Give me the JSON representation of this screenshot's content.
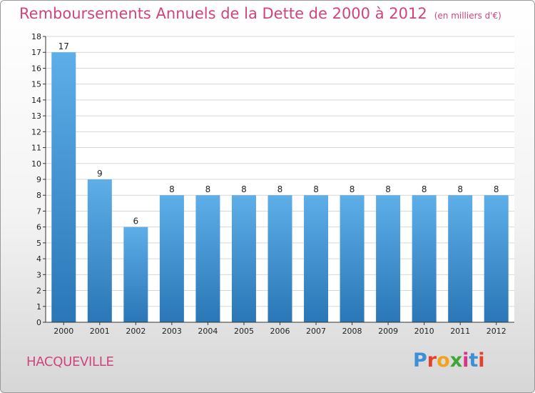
{
  "header": {
    "title": "Remboursements Annuels de la Dette de 2000 à 2012",
    "unit_note": "(en milliers d'€)"
  },
  "footer": {
    "town": "HACQUEVILLE",
    "brand_letters": [
      "P",
      "r",
      "o",
      "x",
      "i",
      "t",
      "i"
    ],
    "brand_colors": [
      "#3d8fd6",
      "#e4402b",
      "#f3a21b",
      "#3fa535",
      "#d6338a",
      "#3d8fd6",
      "#e4402b"
    ]
  },
  "chart_data": {
    "type": "bar",
    "title": "Remboursements Annuels de la Dette de 2000 à 2012",
    "subtitle": "(en milliers d'€)",
    "categories": [
      "2000",
      "2001",
      "2002",
      "2003",
      "2004",
      "2005",
      "2006",
      "2007",
      "2008",
      "2009",
      "2010",
      "2011",
      "2012"
    ],
    "values": [
      17,
      9,
      6,
      8,
      8,
      8,
      8,
      8,
      8,
      8,
      8,
      8,
      8
    ],
    "data_labels": [
      "17",
      "9",
      "6",
      "8",
      "8",
      "8",
      "8",
      "8",
      "8",
      "8",
      "8",
      "8",
      "8"
    ],
    "yticks": [
      "0",
      "1",
      "2",
      "3",
      "4",
      "5",
      "6",
      "7",
      "8",
      "9",
      "10",
      "11",
      "12",
      "13",
      "14",
      "15",
      "16",
      "17",
      "18"
    ],
    "ylim": [
      0,
      18
    ],
    "xlabel": "",
    "ylabel": "",
    "grid": true,
    "colors": {
      "bar_light": "#5daee9",
      "bar_dark": "#2a76b6",
      "grid": "#d7d7d7",
      "axis": "#333333",
      "text": "#222222",
      "plot_bg": "#ffffff"
    }
  }
}
